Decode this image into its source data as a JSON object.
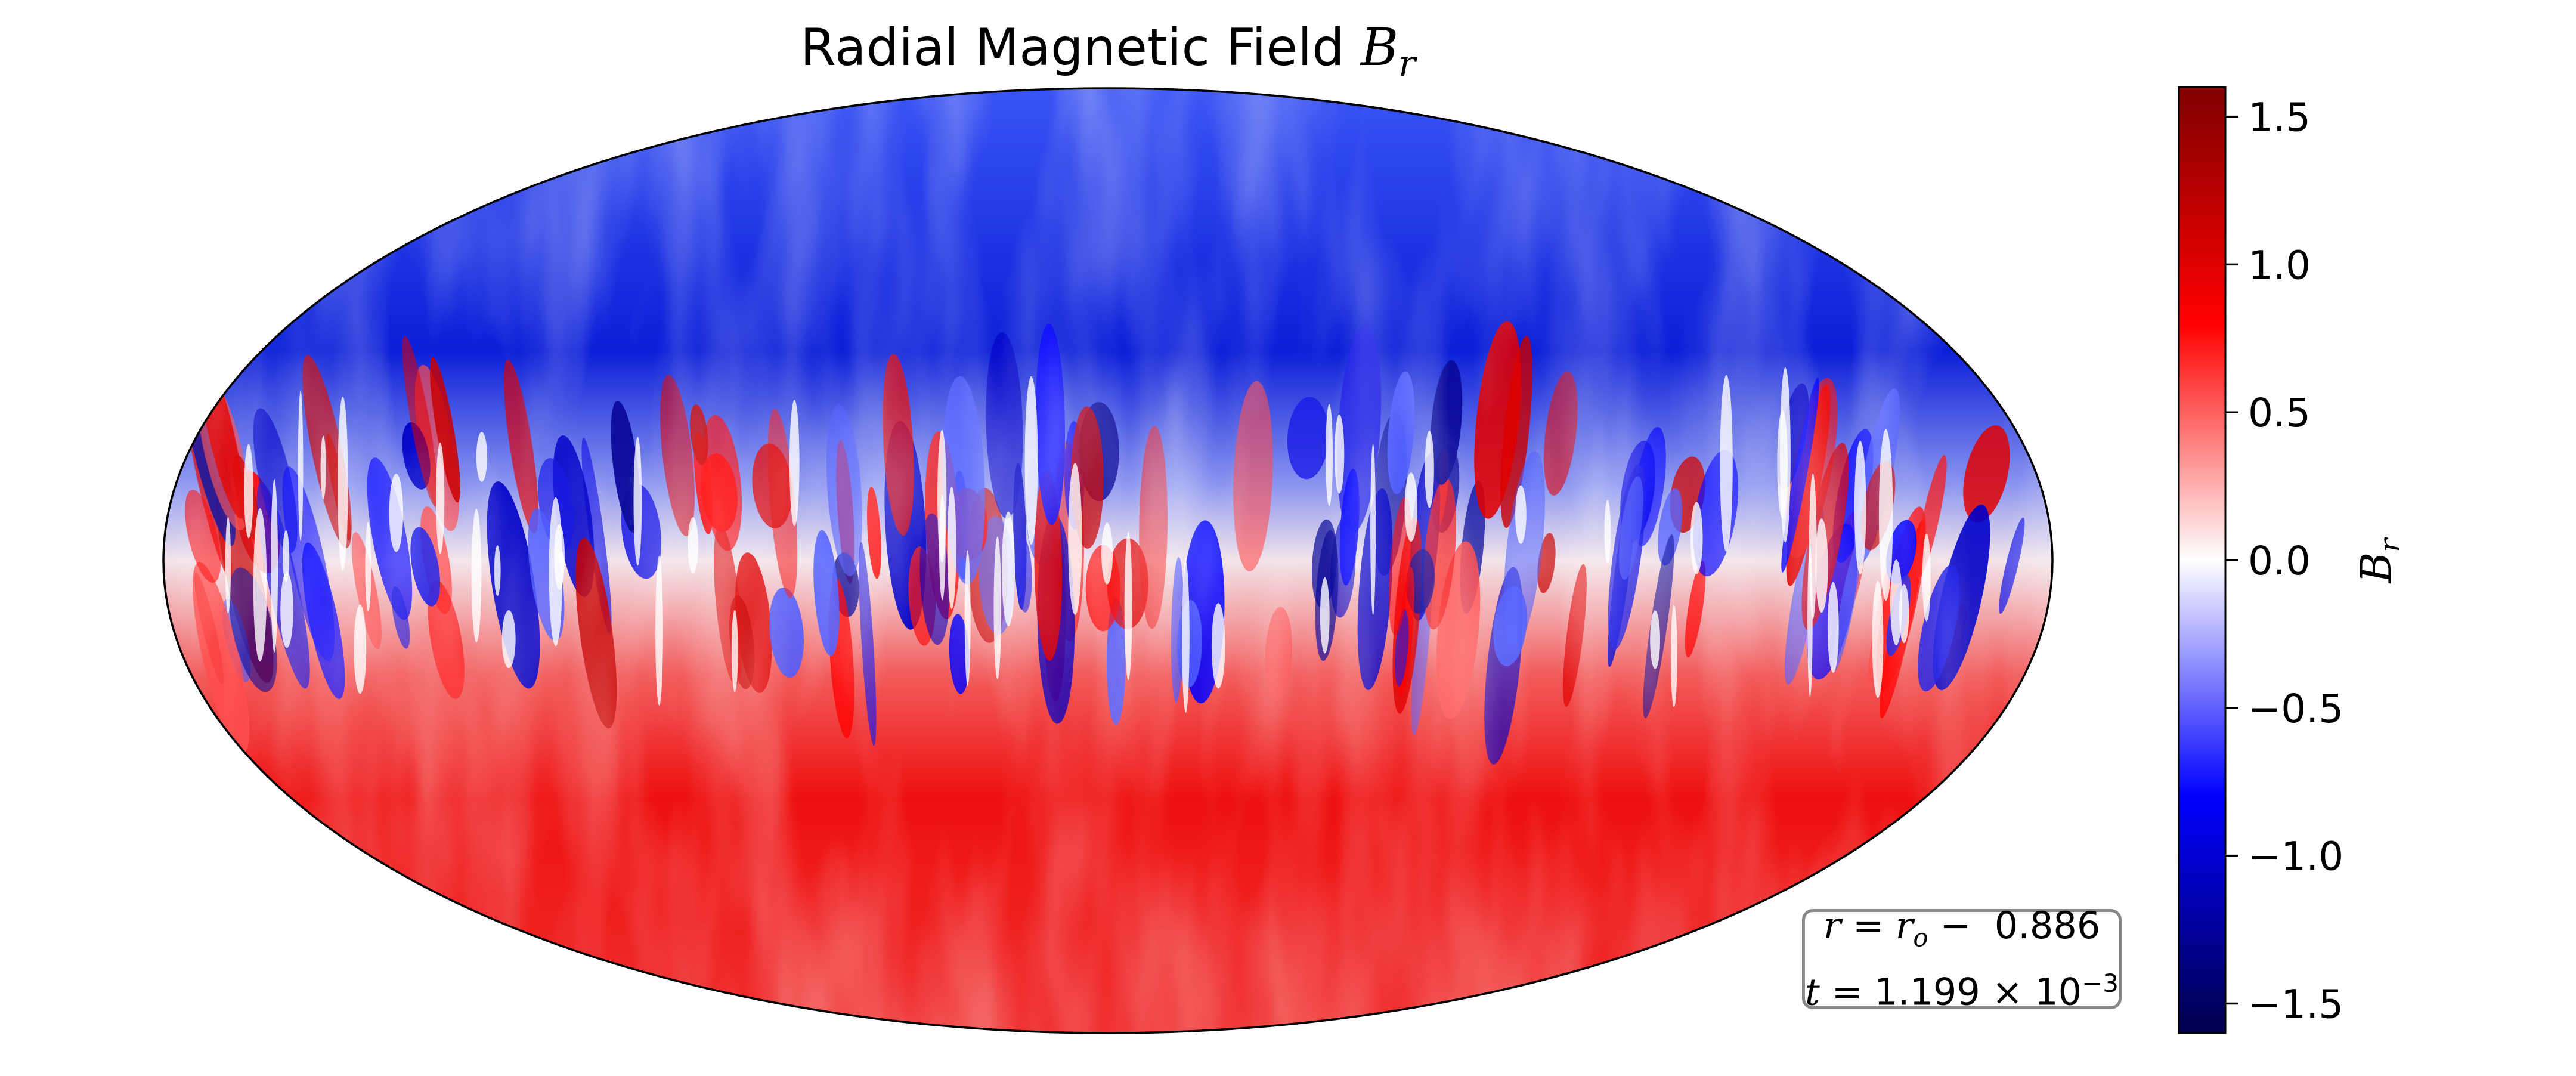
{
  "chart_data": {
    "type": "heatmap",
    "projection": "mollweide",
    "title": "Radial Magnetic Field",
    "title_symbol": "B",
    "title_subscript": "r",
    "colorbar": {
      "label_symbol": "B",
      "label_subscript": "r",
      "range": [
        -1.6,
        1.6
      ],
      "ticks": [
        1.5,
        1.0,
        0.5,
        0.0,
        -0.5,
        -1.0,
        -1.5
      ],
      "tick_labels": [
        "1.5",
        "1.0",
        "0.5",
        "0.0",
        "−0.5",
        "−1.0",
        "−1.5"
      ],
      "colormap": "seismic",
      "colors": {
        "min": "#00004d",
        "low": "#0000ff",
        "mid": "#ffffff",
        "high": "#ff0000",
        "max": "#800000"
      }
    },
    "field_pattern": {
      "north_cap_value": -0.8,
      "south_cap_value": 0.8,
      "equatorial_band": "alternating positive and negative elongated cells"
    },
    "annotation": {
      "line1_lhs": "r",
      "line1_mid": "r",
      "line1_sub": "o",
      "line1_value": "0.886",
      "line2_lhs": "t",
      "line2_mantissa": "1.199",
      "line2_base": "10",
      "line2_exponent": "−3"
    }
  }
}
